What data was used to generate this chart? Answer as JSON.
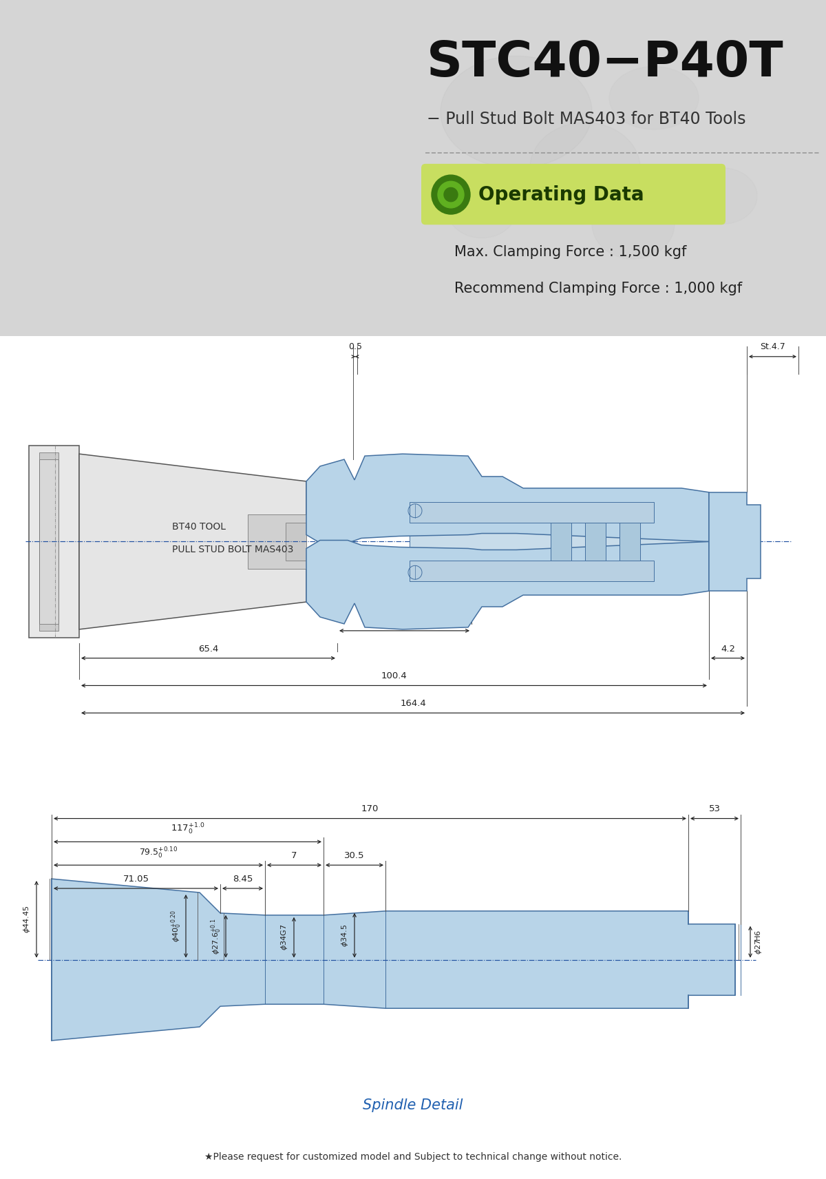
{
  "title": "STC40−P40T",
  "subtitle": "− Pull Stud Bolt MAS403 for BT40 Tools",
  "operating_data_label": "Operating Data",
  "max_clamping": "Max. Clamping Force : 1,500 kgf",
  "recommend_clamping": "Recommend Clamping Force : 1,000 kgf",
  "blue_fill": "#b8d4e8",
  "blue_line": "#4470a0",
  "dim_color": "#222222",
  "spindle_detail_color": "#2060b0",
  "footer_text": "★Please request for customized model and Subject to technical change without notice.",
  "spindle_label": "Spindle Detail",
  "tool_label_1": "BT40 TOOL",
  "tool_label_2": "PULL STUD BOLT MAS403",
  "badge_color": "#c8de60",
  "top_bg": "#d8d8d8",
  "white": "#ffffff"
}
